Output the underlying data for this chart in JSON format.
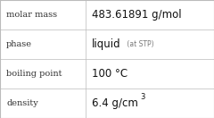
{
  "rows": [
    {
      "label": "molar mass",
      "value": "483.61891 g/mol",
      "suffix": null,
      "superscript": null
    },
    {
      "label": "phase",
      "value": "liquid",
      "suffix": " (at STP)",
      "superscript": null
    },
    {
      "label": "boiling point",
      "value": "100 °C",
      "suffix": null,
      "superscript": null
    },
    {
      "label": "density",
      "value": "6.4 g/cm",
      "suffix": null,
      "superscript": "3"
    }
  ],
  "col_split": 0.4,
  "bg_color": "#ffffff",
  "border_color": "#bbbbbb",
  "label_color": "#333333",
  "value_color": "#111111",
  "suffix_color": "#777777",
  "label_fontsize": 7.0,
  "value_fontsize": 8.5,
  "suffix_fontsize": 5.5
}
